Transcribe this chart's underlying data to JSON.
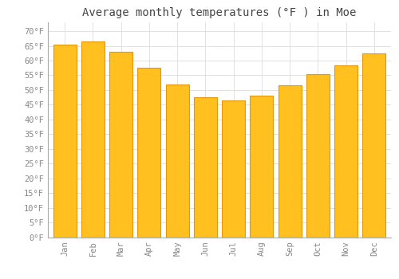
{
  "title": "Average monthly temperatures (°F ) in Moe",
  "months": [
    "Jan",
    "Feb",
    "Mar",
    "Apr",
    "May",
    "Jun",
    "Jul",
    "Aug",
    "Sep",
    "Oct",
    "Nov",
    "Dec"
  ],
  "values": [
    65.5,
    66.5,
    63,
    57.5,
    52,
    47.5,
    46.5,
    48,
    51.5,
    55.5,
    58.5,
    62.5
  ],
  "bar_color_main": "#FFC020",
  "bar_color_edge": "#E8960A",
  "background_color": "#FFFFFF",
  "grid_color": "#DDDDDD",
  "yticks": [
    0,
    5,
    10,
    15,
    20,
    25,
    30,
    35,
    40,
    45,
    50,
    55,
    60,
    65,
    70
  ],
  "ylim": [
    0,
    73
  ],
  "title_fontsize": 10,
  "tick_fontsize": 7.5,
  "tick_color": "#888888",
  "title_color": "#444444",
  "font_family": "monospace",
  "bar_width": 0.82
}
